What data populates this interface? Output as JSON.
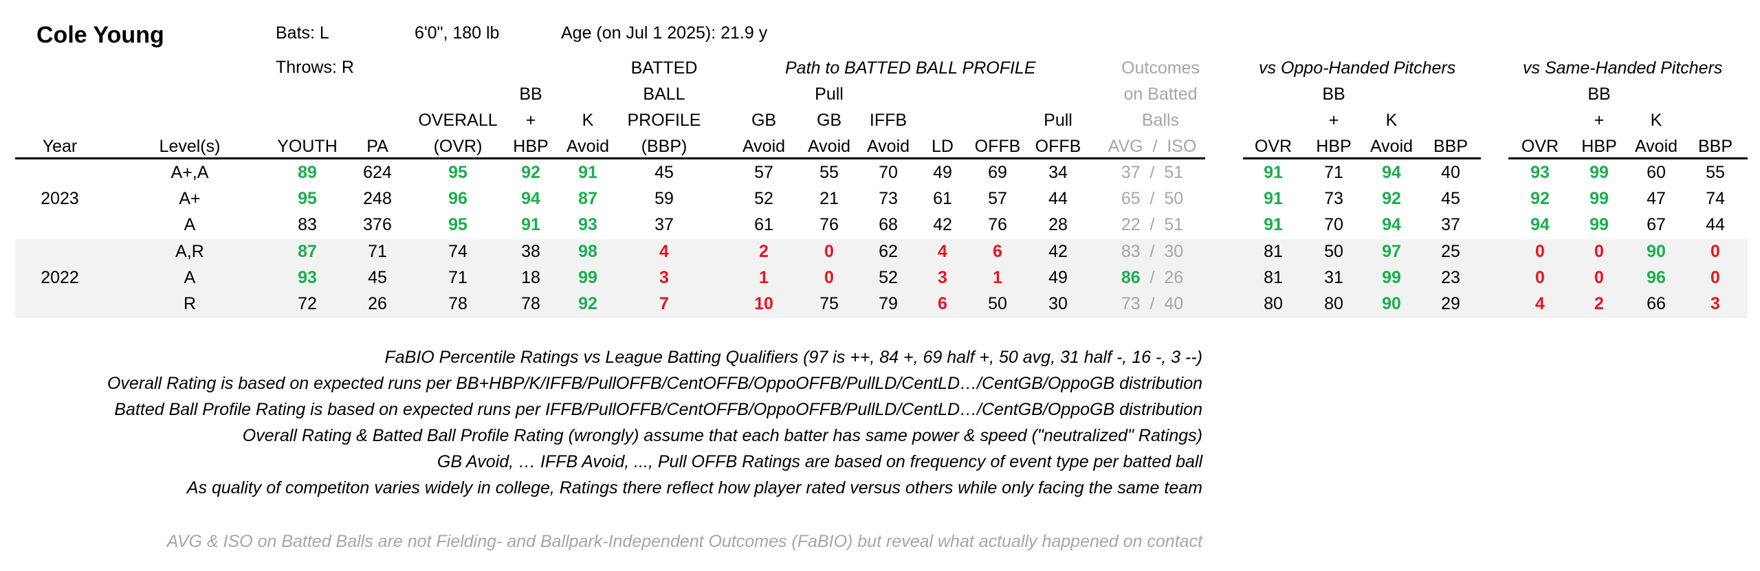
{
  "player": {
    "name": "Cole Young",
    "bats": "Bats: L",
    "size": "6'0\", 180 lb",
    "age": "Age (on Jul 1 2025): 21.9 y",
    "throws": "Throws: R"
  },
  "section_headers": {
    "path": "Path to BATTED BALL PROFILE",
    "outcomes": [
      "Outcomes",
      "on Batted",
      "Balls"
    ],
    "oppo": "vs Oppo-Handed Pitchers",
    "same": "vs Same-Handed Pitchers"
  },
  "columns": {
    "year": "Year",
    "level": "Level(s)",
    "youth": "YOUTH",
    "pa": "PA",
    "ovr": [
      "OVERALL",
      "(OVR)"
    ],
    "bbhbp": [
      "BB",
      "+",
      "HBP"
    ],
    "kavoid": [
      "K",
      "Avoid"
    ],
    "bbp": [
      "BATTED",
      "BALL",
      "PROFILE",
      "(BBP)"
    ],
    "gbavoid": [
      "GB",
      "Avoid"
    ],
    "pullgb": [
      "Pull",
      "GB",
      "Avoid"
    ],
    "iffb": [
      "IFFB",
      "Avoid"
    ],
    "ld": "LD",
    "offb": "OFFB",
    "pulloffb": [
      "Pull",
      "OFFB"
    ],
    "avgiso": "AVG  /  ISO",
    "split_ovr": "OVR",
    "split_bbhbp": [
      "BB",
      "+",
      "HBP"
    ],
    "split_k": [
      "K",
      "Avoid"
    ],
    "split_bbp": "BBP"
  },
  "rows": [
    {
      "year": "",
      "level": "A+,A",
      "youth": {
        "v": "89",
        "c": "green"
      },
      "pa": "624",
      "ovr": {
        "v": "95",
        "c": "green"
      },
      "bbhbp": {
        "v": "92",
        "c": "green"
      },
      "kavoid": {
        "v": "91",
        "c": "green"
      },
      "bbp": {
        "v": "45",
        "c": ""
      },
      "gbavoid": {
        "v": "57",
        "c": ""
      },
      "pullgb": {
        "v": "55",
        "c": ""
      },
      "iffb": {
        "v": "70",
        "c": ""
      },
      "ld": {
        "v": "49",
        "c": ""
      },
      "offb": {
        "v": "69",
        "c": ""
      },
      "pulloffb": {
        "v": "34",
        "c": ""
      },
      "avg": {
        "v": "37",
        "c": "g2"
      },
      "iso": {
        "v": "51",
        "c": "g2"
      },
      "o_ovr": {
        "v": "91",
        "c": "green"
      },
      "o_bb": {
        "v": "71",
        "c": ""
      },
      "o_k": {
        "v": "94",
        "c": "green"
      },
      "o_bbp": {
        "v": "40",
        "c": ""
      },
      "s_ovr": {
        "v": "93",
        "c": "green"
      },
      "s_bb": {
        "v": "99",
        "c": "green"
      },
      "s_k": {
        "v": "60",
        "c": ""
      },
      "s_bbp": {
        "v": "55",
        "c": ""
      }
    },
    {
      "year": "2023",
      "level": "A+",
      "youth": {
        "v": "95",
        "c": "green"
      },
      "pa": "248",
      "ovr": {
        "v": "96",
        "c": "green"
      },
      "bbhbp": {
        "v": "94",
        "c": "green"
      },
      "kavoid": {
        "v": "87",
        "c": "green"
      },
      "bbp": {
        "v": "59",
        "c": ""
      },
      "gbavoid": {
        "v": "52",
        "c": ""
      },
      "pullgb": {
        "v": "21",
        "c": ""
      },
      "iffb": {
        "v": "73",
        "c": ""
      },
      "ld": {
        "v": "61",
        "c": ""
      },
      "offb": {
        "v": "57",
        "c": ""
      },
      "pulloffb": {
        "v": "44",
        "c": ""
      },
      "avg": {
        "v": "65",
        "c": "g2"
      },
      "iso": {
        "v": "50",
        "c": "g2"
      },
      "o_ovr": {
        "v": "91",
        "c": "green"
      },
      "o_bb": {
        "v": "73",
        "c": ""
      },
      "o_k": {
        "v": "92",
        "c": "green"
      },
      "o_bbp": {
        "v": "45",
        "c": ""
      },
      "s_ovr": {
        "v": "92",
        "c": "green"
      },
      "s_bb": {
        "v": "99",
        "c": "green"
      },
      "s_k": {
        "v": "47",
        "c": ""
      },
      "s_bbp": {
        "v": "74",
        "c": ""
      }
    },
    {
      "year": "",
      "level": "A",
      "youth": {
        "v": "83",
        "c": ""
      },
      "pa": "376",
      "ovr": {
        "v": "95",
        "c": "green"
      },
      "bbhbp": {
        "v": "91",
        "c": "green"
      },
      "kavoid": {
        "v": "93",
        "c": "green"
      },
      "bbp": {
        "v": "37",
        "c": ""
      },
      "gbavoid": {
        "v": "61",
        "c": ""
      },
      "pullgb": {
        "v": "76",
        "c": ""
      },
      "iffb": {
        "v": "68",
        "c": ""
      },
      "ld": {
        "v": "42",
        "c": ""
      },
      "offb": {
        "v": "76",
        "c": ""
      },
      "pulloffb": {
        "v": "28",
        "c": ""
      },
      "avg": {
        "v": "22",
        "c": "g2"
      },
      "iso": {
        "v": "51",
        "c": "g2"
      },
      "o_ovr": {
        "v": "91",
        "c": "green"
      },
      "o_bb": {
        "v": "70",
        "c": ""
      },
      "o_k": {
        "v": "94",
        "c": "green"
      },
      "o_bbp": {
        "v": "37",
        "c": ""
      },
      "s_ovr": {
        "v": "94",
        "c": "green"
      },
      "s_bb": {
        "v": "99",
        "c": "green"
      },
      "s_k": {
        "v": "67",
        "c": ""
      },
      "s_bbp": {
        "v": "44",
        "c": ""
      }
    },
    {
      "year": "",
      "level": "A,R",
      "youth": {
        "v": "87",
        "c": "green"
      },
      "pa": "71",
      "ovr": {
        "v": "74",
        "c": ""
      },
      "bbhbp": {
        "v": "38",
        "c": ""
      },
      "kavoid": {
        "v": "98",
        "c": "green"
      },
      "bbp": {
        "v": "4",
        "c": "red"
      },
      "gbavoid": {
        "v": "2",
        "c": "red"
      },
      "pullgb": {
        "v": "0",
        "c": "red"
      },
      "iffb": {
        "v": "62",
        "c": ""
      },
      "ld": {
        "v": "4",
        "c": "red"
      },
      "offb": {
        "v": "6",
        "c": "red"
      },
      "pulloffb": {
        "v": "42",
        "c": ""
      },
      "avg": {
        "v": "83",
        "c": "g2"
      },
      "iso": {
        "v": "30",
        "c": "g2"
      },
      "o_ovr": {
        "v": "81",
        "c": ""
      },
      "o_bb": {
        "v": "50",
        "c": ""
      },
      "o_k": {
        "v": "97",
        "c": "green"
      },
      "o_bbp": {
        "v": "25",
        "c": ""
      },
      "s_ovr": {
        "v": "0",
        "c": "red"
      },
      "s_bb": {
        "v": "0",
        "c": "red"
      },
      "s_k": {
        "v": "90",
        "c": "green"
      },
      "s_bbp": {
        "v": "0",
        "c": "red"
      }
    },
    {
      "year": "2022",
      "level": "A",
      "youth": {
        "v": "93",
        "c": "green"
      },
      "pa": "45",
      "ovr": {
        "v": "71",
        "c": ""
      },
      "bbhbp": {
        "v": "18",
        "c": ""
      },
      "kavoid": {
        "v": "99",
        "c": "green"
      },
      "bbp": {
        "v": "3",
        "c": "red"
      },
      "gbavoid": {
        "v": "1",
        "c": "red"
      },
      "pullgb": {
        "v": "0",
        "c": "red"
      },
      "iffb": {
        "v": "52",
        "c": ""
      },
      "ld": {
        "v": "3",
        "c": "red"
      },
      "offb": {
        "v": "1",
        "c": "red"
      },
      "pulloffb": {
        "v": "49",
        "c": ""
      },
      "avg": {
        "v": "86",
        "c": "green"
      },
      "iso": {
        "v": "26",
        "c": "g2"
      },
      "o_ovr": {
        "v": "81",
        "c": ""
      },
      "o_bb": {
        "v": "31",
        "c": ""
      },
      "o_k": {
        "v": "99",
        "c": "green"
      },
      "o_bbp": {
        "v": "23",
        "c": ""
      },
      "s_ovr": {
        "v": "0",
        "c": "red"
      },
      "s_bb": {
        "v": "0",
        "c": "red"
      },
      "s_k": {
        "v": "96",
        "c": "green"
      },
      "s_bbp": {
        "v": "0",
        "c": "red"
      }
    },
    {
      "year": "",
      "level": "R",
      "youth": {
        "v": "72",
        "c": ""
      },
      "pa": "26",
      "ovr": {
        "v": "78",
        "c": ""
      },
      "bbhbp": {
        "v": "78",
        "c": ""
      },
      "kavoid": {
        "v": "92",
        "c": "green"
      },
      "bbp": {
        "v": "7",
        "c": "red"
      },
      "gbavoid": {
        "v": "10",
        "c": "red"
      },
      "pullgb": {
        "v": "75",
        "c": ""
      },
      "iffb": {
        "v": "79",
        "c": ""
      },
      "ld": {
        "v": "6",
        "c": "red"
      },
      "offb": {
        "v": "50",
        "c": ""
      },
      "pulloffb": {
        "v": "30",
        "c": ""
      },
      "avg": {
        "v": "73",
        "c": "g2"
      },
      "iso": {
        "v": "40",
        "c": "g2"
      },
      "o_ovr": {
        "v": "80",
        "c": ""
      },
      "o_bb": {
        "v": "80",
        "c": ""
      },
      "o_k": {
        "v": "90",
        "c": "green"
      },
      "o_bbp": {
        "v": "29",
        "c": ""
      },
      "s_ovr": {
        "v": "4",
        "c": "red"
      },
      "s_bb": {
        "v": "2",
        "c": "red"
      },
      "s_k": {
        "v": "66",
        "c": ""
      },
      "s_bbp": {
        "v": "3",
        "c": "red"
      }
    }
  ],
  "notes": [
    "FaBIO Percentile Ratings vs League Batting Qualifiers (97 is ++, 84 +, 69 half +, 50 avg, 31 half -, 16 -, 3 --)",
    "Overall Rating is based on expected runs per BB+HBP/K/IFFB/PullOFFB/CentOFFB/OppoOFFB/PullLD/CentLD…/CentGB/OppoGB distribution",
    "Batted Ball Profile Rating is based on expected runs per IFFB/PullOFFB/CentOFFB/OppoOFFB/PullLD/CentLD…/CentGB/OppoGB distribution",
    "Overall Rating & Batted Ball Profile Rating (wrongly) assume that each batter has same power & speed (\"neutralized\" Ratings)",
    "GB Avoid, … IFFB Avoid, ..., Pull OFFB Ratings are based on frequency of event type per batted ball",
    "As quality of competiton varies widely in college, Ratings there reflect how player rated versus others while only facing the same team"
  ],
  "footnote": "AVG & ISO on Batted Balls are not Fielding- and Ballpark-Independent Outcomes (FaBIO) but reveal what actually happened on contact",
  "colors": {
    "green": "#1aaf4b",
    "red": "#e8141c",
    "gray": "#a6a6a6",
    "band": "#f2f2f2"
  }
}
